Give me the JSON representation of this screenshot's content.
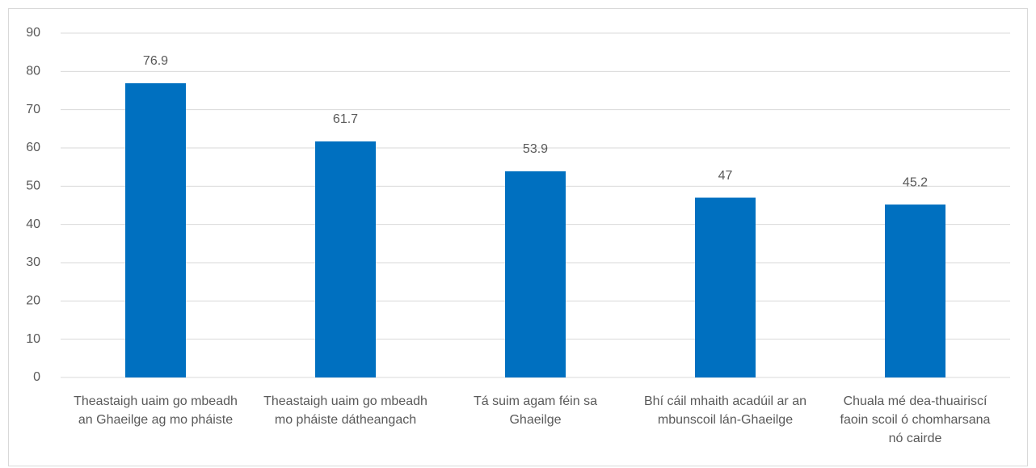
{
  "chart_data": {
    "type": "bar",
    "categories": [
      "Theastaigh uaim go mbeadh an Ghaeilge ag mo pháiste",
      "Theastaigh uaim go mbeadh mo pháiste dátheangach",
      "Tá suim agam féin sa Ghaeilge",
      "Bhí cáil mhaith acadúil ar an mbunscoil lán-Ghaeilge",
      "Chuala mé dea-thuairiscí faoin scoil ó chomharsana nó cairde"
    ],
    "values": [
      76.9,
      61.7,
      53.9,
      47,
      45.2
    ],
    "color": "#0070c0",
    "ylim": [
      0,
      90
    ],
    "yticks": [
      0,
      10,
      20,
      30,
      40,
      50,
      60,
      70,
      80,
      90
    ],
    "grid": true
  }
}
